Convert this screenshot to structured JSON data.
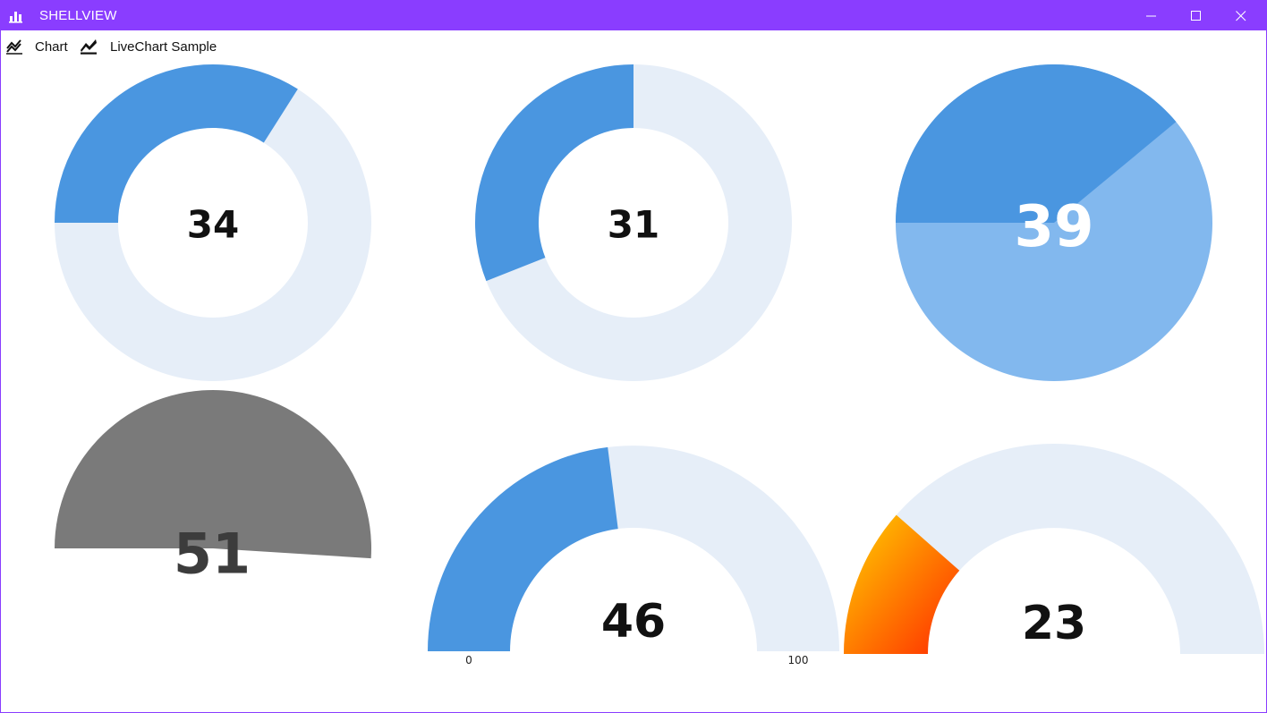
{
  "window": {
    "title": "SHELLVIEW",
    "accent": "#8a3dff"
  },
  "menu": {
    "items": [
      {
        "label": "Chart",
        "icon": "line-chart-icon"
      },
      {
        "label": "LiveChart Sample",
        "icon": "line-chart-filled-icon"
      }
    ]
  },
  "colors": {
    "fill_primary": "#4a96e0",
    "fill_light": "#82b8ee",
    "track": "#e6eef8",
    "gray": "#7a7a7a",
    "gradient_start": "#ffd200",
    "gradient_end": "#ff2a00"
  },
  "gauges": {
    "g1": {
      "value": 34,
      "max": 100,
      "label": "34"
    },
    "g2": {
      "value": 31,
      "max": 100,
      "label": "31"
    },
    "g3": {
      "value": 39,
      "max": 100,
      "label": "39"
    },
    "g4": {
      "value": 51,
      "max": 100,
      "label": "51"
    },
    "g5": {
      "value": 46,
      "max": 100,
      "label": "46",
      "min_label": "0",
      "max_label": "100"
    },
    "g6": {
      "value": 23,
      "max": 100,
      "label": "23"
    }
  }
}
